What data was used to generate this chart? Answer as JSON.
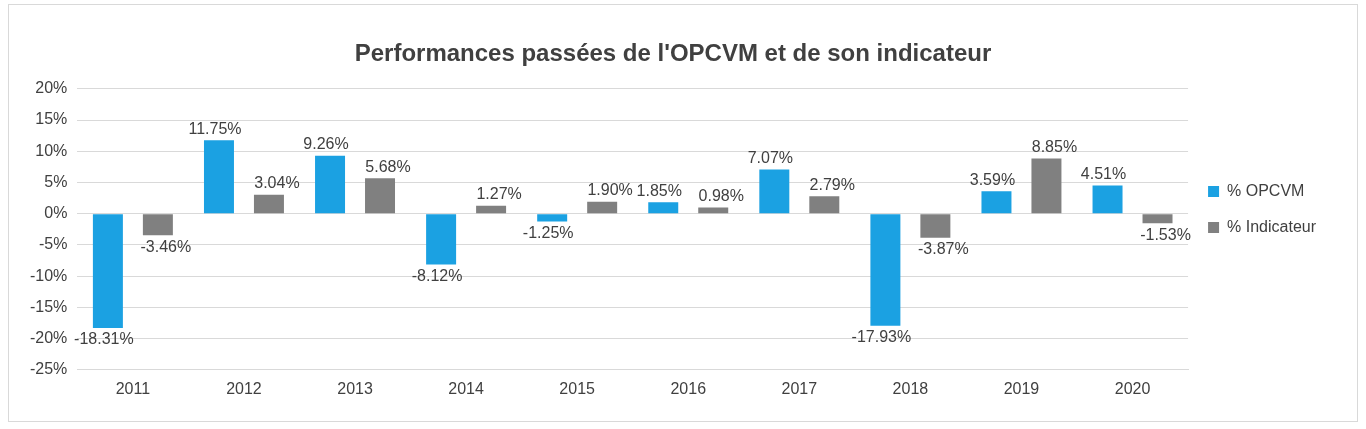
{
  "chart_data": {
    "type": "bar",
    "title": "Performances passées de l'OPCVM et de son indicateur",
    "categories": [
      "2011",
      "2012",
      "2013",
      "2014",
      "2015",
      "2016",
      "2017",
      "2018",
      "2019",
      "2020"
    ],
    "series": [
      {
        "name": "% OPCVM",
        "color": "#1ba1e2",
        "values": [
          -18.31,
          11.75,
          9.26,
          -8.12,
          -1.25,
          1.85,
          7.07,
          -17.93,
          3.59,
          4.51
        ],
        "value_labels": [
          "-18.31%",
          "11.75%",
          "9.26%",
          "-8.12%",
          "-1.25%",
          "1.85%",
          "7.07%",
          "-17.93%",
          "3.59%",
          "4.51%"
        ]
      },
      {
        "name": "% Indicateur",
        "color": "#808080",
        "values": [
          -3.46,
          3.04,
          5.68,
          1.27,
          1.9,
          0.98,
          2.79,
          -3.87,
          8.85,
          -1.53
        ],
        "value_labels": [
          "-3.46%",
          "3.04%",
          "5.68%",
          "1.27%",
          "1.90%",
          "0.98%",
          "2.79%",
          "-3.87%",
          "8.85%",
          "-1.53%"
        ]
      }
    ],
    "ylim": [
      -25,
      20
    ],
    "yticks": [
      {
        "value": -25,
        "label": "-25%"
      },
      {
        "value": -20,
        "label": "-20%"
      },
      {
        "value": -15,
        "label": "-15%"
      },
      {
        "value": -10,
        "label": "-10%"
      },
      {
        "value": -5,
        "label": "-5%"
      },
      {
        "value": 0,
        "label": "0%"
      },
      {
        "value": 5,
        "label": "5%"
      },
      {
        "value": 10,
        "label": "10%"
      },
      {
        "value": 15,
        "label": "15%"
      },
      {
        "value": 20,
        "label": "20%"
      }
    ],
    "grid": "y",
    "legend": "right"
  }
}
